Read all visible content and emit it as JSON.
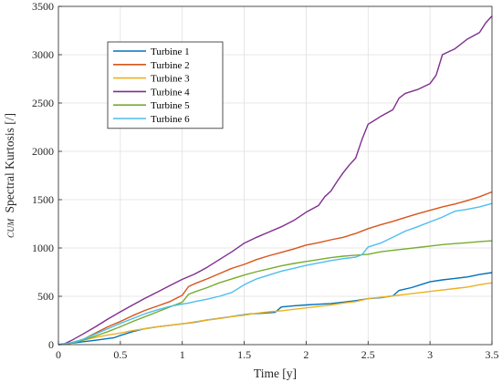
{
  "chart_data": {
    "type": "line",
    "title": "",
    "xlabel": "Time [y]",
    "ylabel_prefix": "CUM",
    "ylabel": "Spectral Kurtosis [/]",
    "xlim": [
      0,
      3.5
    ],
    "ylim": [
      0,
      3500
    ],
    "xticks": [
      0,
      0.5,
      1,
      1.5,
      2,
      2.5,
      3,
      3.5
    ],
    "xtick_labels": [
      "0",
      "0.5",
      "1",
      "1.5",
      "2",
      "2.5",
      "3",
      "3.5"
    ],
    "yticks": [
      0,
      500,
      1000,
      1500,
      2000,
      2500,
      3000,
      3500
    ],
    "ytick_labels": [
      "0",
      "500",
      "1000",
      "1500",
      "2000",
      "2500",
      "3000",
      "3500"
    ],
    "grid": true,
    "legend_position": "top-left",
    "series": [
      {
        "name": "Turbine 1",
        "color": "#0072BD",
        "points": [
          [
            0.0,
            0
          ],
          [
            0.05,
            8
          ],
          [
            0.15,
            22
          ],
          [
            0.3,
            45
          ],
          [
            0.45,
            72
          ],
          [
            0.5,
            95
          ],
          [
            0.6,
            135
          ],
          [
            0.7,
            165
          ],
          [
            0.8,
            185
          ],
          [
            0.9,
            200
          ],
          [
            1.0,
            215
          ],
          [
            1.1,
            232
          ],
          [
            1.2,
            255
          ],
          [
            1.3,
            272
          ],
          [
            1.45,
            300
          ],
          [
            1.55,
            318
          ],
          [
            1.65,
            325
          ],
          [
            1.75,
            335
          ],
          [
            1.8,
            390
          ],
          [
            1.9,
            402
          ],
          [
            2.0,
            410
          ],
          [
            2.1,
            418
          ],
          [
            2.2,
            425
          ],
          [
            2.3,
            440
          ],
          [
            2.4,
            455
          ],
          [
            2.5,
            475
          ],
          [
            2.6,
            485
          ],
          [
            2.7,
            505
          ],
          [
            2.75,
            560
          ],
          [
            2.85,
            590
          ],
          [
            2.95,
            630
          ],
          [
            3.0,
            650
          ],
          [
            3.1,
            670
          ],
          [
            3.2,
            685
          ],
          [
            3.3,
            700
          ],
          [
            3.4,
            725
          ],
          [
            3.5,
            745
          ]
        ]
      },
      {
        "name": "Turbine 2",
        "color": "#D95319",
        "points": [
          [
            0.0,
            0
          ],
          [
            0.05,
            5
          ],
          [
            0.1,
            15
          ],
          [
            0.2,
            55
          ],
          [
            0.3,
            120
          ],
          [
            0.4,
            185
          ],
          [
            0.5,
            240
          ],
          [
            0.6,
            300
          ],
          [
            0.7,
            355
          ],
          [
            0.8,
            400
          ],
          [
            0.9,
            445
          ],
          [
            1.0,
            510
          ],
          [
            1.05,
            600
          ],
          [
            1.1,
            630
          ],
          [
            1.2,
            680
          ],
          [
            1.3,
            735
          ],
          [
            1.4,
            790
          ],
          [
            1.5,
            830
          ],
          [
            1.6,
            880
          ],
          [
            1.7,
            920
          ],
          [
            1.8,
            955
          ],
          [
            1.9,
            990
          ],
          [
            2.0,
            1030
          ],
          [
            2.1,
            1055
          ],
          [
            2.2,
            1085
          ],
          [
            2.3,
            1110
          ],
          [
            2.4,
            1150
          ],
          [
            2.5,
            1200
          ],
          [
            2.6,
            1240
          ],
          [
            2.7,
            1275
          ],
          [
            2.8,
            1315
          ],
          [
            2.9,
            1355
          ],
          [
            3.0,
            1390
          ],
          [
            3.1,
            1425
          ],
          [
            3.2,
            1455
          ],
          [
            3.3,
            1490
          ],
          [
            3.4,
            1530
          ],
          [
            3.5,
            1580
          ]
        ]
      },
      {
        "name": "Turbine 3",
        "color": "#EDB120",
        "points": [
          [
            0.0,
            0
          ],
          [
            0.1,
            20
          ],
          [
            0.2,
            45
          ],
          [
            0.3,
            75
          ],
          [
            0.4,
            100
          ],
          [
            0.5,
            120
          ],
          [
            0.6,
            145
          ],
          [
            0.7,
            165
          ],
          [
            0.8,
            185
          ],
          [
            0.9,
            200
          ],
          [
            1.0,
            215
          ],
          [
            1.1,
            235
          ],
          [
            1.2,
            255
          ],
          [
            1.3,
            270
          ],
          [
            1.4,
            290
          ],
          [
            1.5,
            305
          ],
          [
            1.6,
            325
          ],
          [
            1.7,
            340
          ],
          [
            1.8,
            350
          ],
          [
            1.9,
            365
          ],
          [
            2.0,
            380
          ],
          [
            2.1,
            395
          ],
          [
            2.2,
            410
          ],
          [
            2.3,
            430
          ],
          [
            2.4,
            445
          ],
          [
            2.5,
            475
          ],
          [
            2.6,
            490
          ],
          [
            2.7,
            505
          ],
          [
            2.8,
            520
          ],
          [
            2.9,
            535
          ],
          [
            3.0,
            550
          ],
          [
            3.1,
            565
          ],
          [
            3.2,
            580
          ],
          [
            3.3,
            595
          ],
          [
            3.4,
            620
          ],
          [
            3.5,
            640
          ]
        ]
      },
      {
        "name": "Turbine 4",
        "color": "#7E2F8E",
        "points": [
          [
            0.0,
            0
          ],
          [
            0.05,
            10
          ],
          [
            0.1,
            40
          ],
          [
            0.2,
            110
          ],
          [
            0.3,
            185
          ],
          [
            0.4,
            265
          ],
          [
            0.5,
            340
          ],
          [
            0.6,
            410
          ],
          [
            0.7,
            480
          ],
          [
            0.8,
            545
          ],
          [
            0.9,
            610
          ],
          [
            1.0,
            675
          ],
          [
            1.1,
            730
          ],
          [
            1.2,
            800
          ],
          [
            1.3,
            880
          ],
          [
            1.4,
            960
          ],
          [
            1.5,
            1050
          ],
          [
            1.6,
            1110
          ],
          [
            1.7,
            1165
          ],
          [
            1.8,
            1220
          ],
          [
            1.9,
            1285
          ],
          [
            2.0,
            1370
          ],
          [
            2.1,
            1440
          ],
          [
            2.15,
            1530
          ],
          [
            2.2,
            1590
          ],
          [
            2.25,
            1690
          ],
          [
            2.3,
            1780
          ],
          [
            2.35,
            1860
          ],
          [
            2.4,
            1930
          ],
          [
            2.45,
            2120
          ],
          [
            2.5,
            2280
          ],
          [
            2.55,
            2320
          ],
          [
            2.6,
            2360
          ],
          [
            2.7,
            2430
          ],
          [
            2.75,
            2550
          ],
          [
            2.8,
            2600
          ],
          [
            2.9,
            2640
          ],
          [
            3.0,
            2700
          ],
          [
            3.05,
            2790
          ],
          [
            3.1,
            3000
          ],
          [
            3.15,
            3030
          ],
          [
            3.2,
            3060
          ],
          [
            3.3,
            3160
          ],
          [
            3.4,
            3230
          ],
          [
            3.45,
            3330
          ],
          [
            3.5,
            3400
          ]
        ]
      },
      {
        "name": "Turbine 5",
        "color": "#77AC30",
        "points": [
          [
            0.0,
            0
          ],
          [
            0.1,
            15
          ],
          [
            0.2,
            45
          ],
          [
            0.3,
            90
          ],
          [
            0.4,
            135
          ],
          [
            0.5,
            185
          ],
          [
            0.6,
            240
          ],
          [
            0.7,
            290
          ],
          [
            0.8,
            340
          ],
          [
            0.9,
            390
          ],
          [
            1.0,
            440
          ],
          [
            1.05,
            520
          ],
          [
            1.1,
            545
          ],
          [
            1.2,
            590
          ],
          [
            1.3,
            640
          ],
          [
            1.4,
            680
          ],
          [
            1.5,
            720
          ],
          [
            1.6,
            755
          ],
          [
            1.7,
            785
          ],
          [
            1.8,
            815
          ],
          [
            1.9,
            840
          ],
          [
            2.0,
            860
          ],
          [
            2.1,
            880
          ],
          [
            2.2,
            900
          ],
          [
            2.3,
            915
          ],
          [
            2.4,
            925
          ],
          [
            2.5,
            935
          ],
          [
            2.6,
            960
          ],
          [
            2.7,
            975
          ],
          [
            2.8,
            990
          ],
          [
            2.9,
            1005
          ],
          [
            3.0,
            1020
          ],
          [
            3.1,
            1035
          ],
          [
            3.2,
            1045
          ],
          [
            3.3,
            1055
          ],
          [
            3.4,
            1065
          ],
          [
            3.5,
            1075
          ]
        ]
      },
      {
        "name": "Turbine 6",
        "color": "#4DBEEE",
        "points": [
          [
            0.0,
            0
          ],
          [
            0.1,
            20
          ],
          [
            0.2,
            55
          ],
          [
            0.3,
            110
          ],
          [
            0.4,
            165
          ],
          [
            0.5,
            220
          ],
          [
            0.6,
            270
          ],
          [
            0.7,
            320
          ],
          [
            0.8,
            360
          ],
          [
            0.9,
            395
          ],
          [
            1.0,
            420
          ],
          [
            1.05,
            430
          ],
          [
            1.1,
            445
          ],
          [
            1.2,
            470
          ],
          [
            1.3,
            500
          ],
          [
            1.4,
            540
          ],
          [
            1.5,
            620
          ],
          [
            1.6,
            680
          ],
          [
            1.7,
            720
          ],
          [
            1.8,
            760
          ],
          [
            1.9,
            790
          ],
          [
            2.0,
            820
          ],
          [
            2.1,
            845
          ],
          [
            2.2,
            870
          ],
          [
            2.3,
            890
          ],
          [
            2.4,
            905
          ],
          [
            2.45,
            930
          ],
          [
            2.5,
            1010
          ],
          [
            2.6,
            1050
          ],
          [
            2.7,
            1110
          ],
          [
            2.8,
            1175
          ],
          [
            2.9,
            1220
          ],
          [
            3.0,
            1270
          ],
          [
            3.1,
            1320
          ],
          [
            3.2,
            1380
          ],
          [
            3.3,
            1400
          ],
          [
            3.4,
            1425
          ],
          [
            3.5,
            1460
          ]
        ]
      }
    ]
  }
}
